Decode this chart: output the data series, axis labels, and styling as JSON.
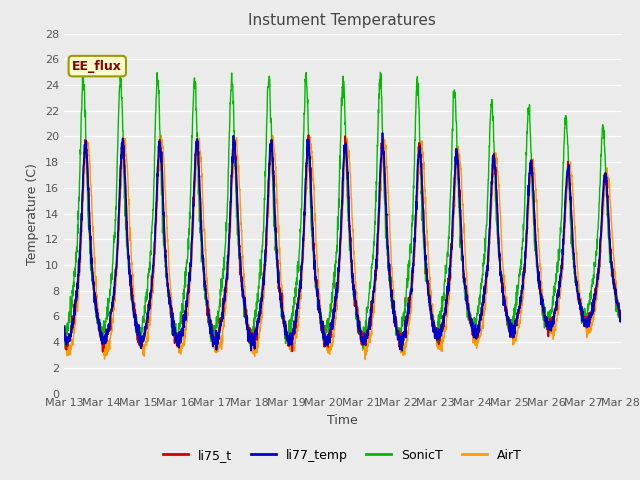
{
  "title": "Instument Temperatures",
  "xlabel": "Time",
  "ylabel": "Temperature (C)",
  "ylim": [
    0,
    28
  ],
  "yticks": [
    0,
    2,
    4,
    6,
    8,
    10,
    12,
    14,
    16,
    18,
    20,
    22,
    24,
    26,
    28
  ],
  "colors": {
    "li75_t": "#cc0000",
    "li77_temp": "#0000cc",
    "SonicT": "#00bb00",
    "AirT": "#ff9900"
  },
  "bg_color": "#ebebeb",
  "legend_label": "EE_flux",
  "legend_bg": "#ffffcc",
  "legend_border": "#999900",
  "xtick_labels": [
    "Mar 13",
    "Mar 14",
    "Mar 15",
    "Mar 16",
    "Mar 17",
    "Mar 18",
    "Mar 19",
    "Mar 20",
    "Mar 21",
    "Mar 22",
    "Mar 23",
    "Mar 24",
    "Mar 25",
    "Mar 26",
    "Mar 27",
    "Mar 28"
  ],
  "n_days": 15,
  "points_per_day": 144
}
